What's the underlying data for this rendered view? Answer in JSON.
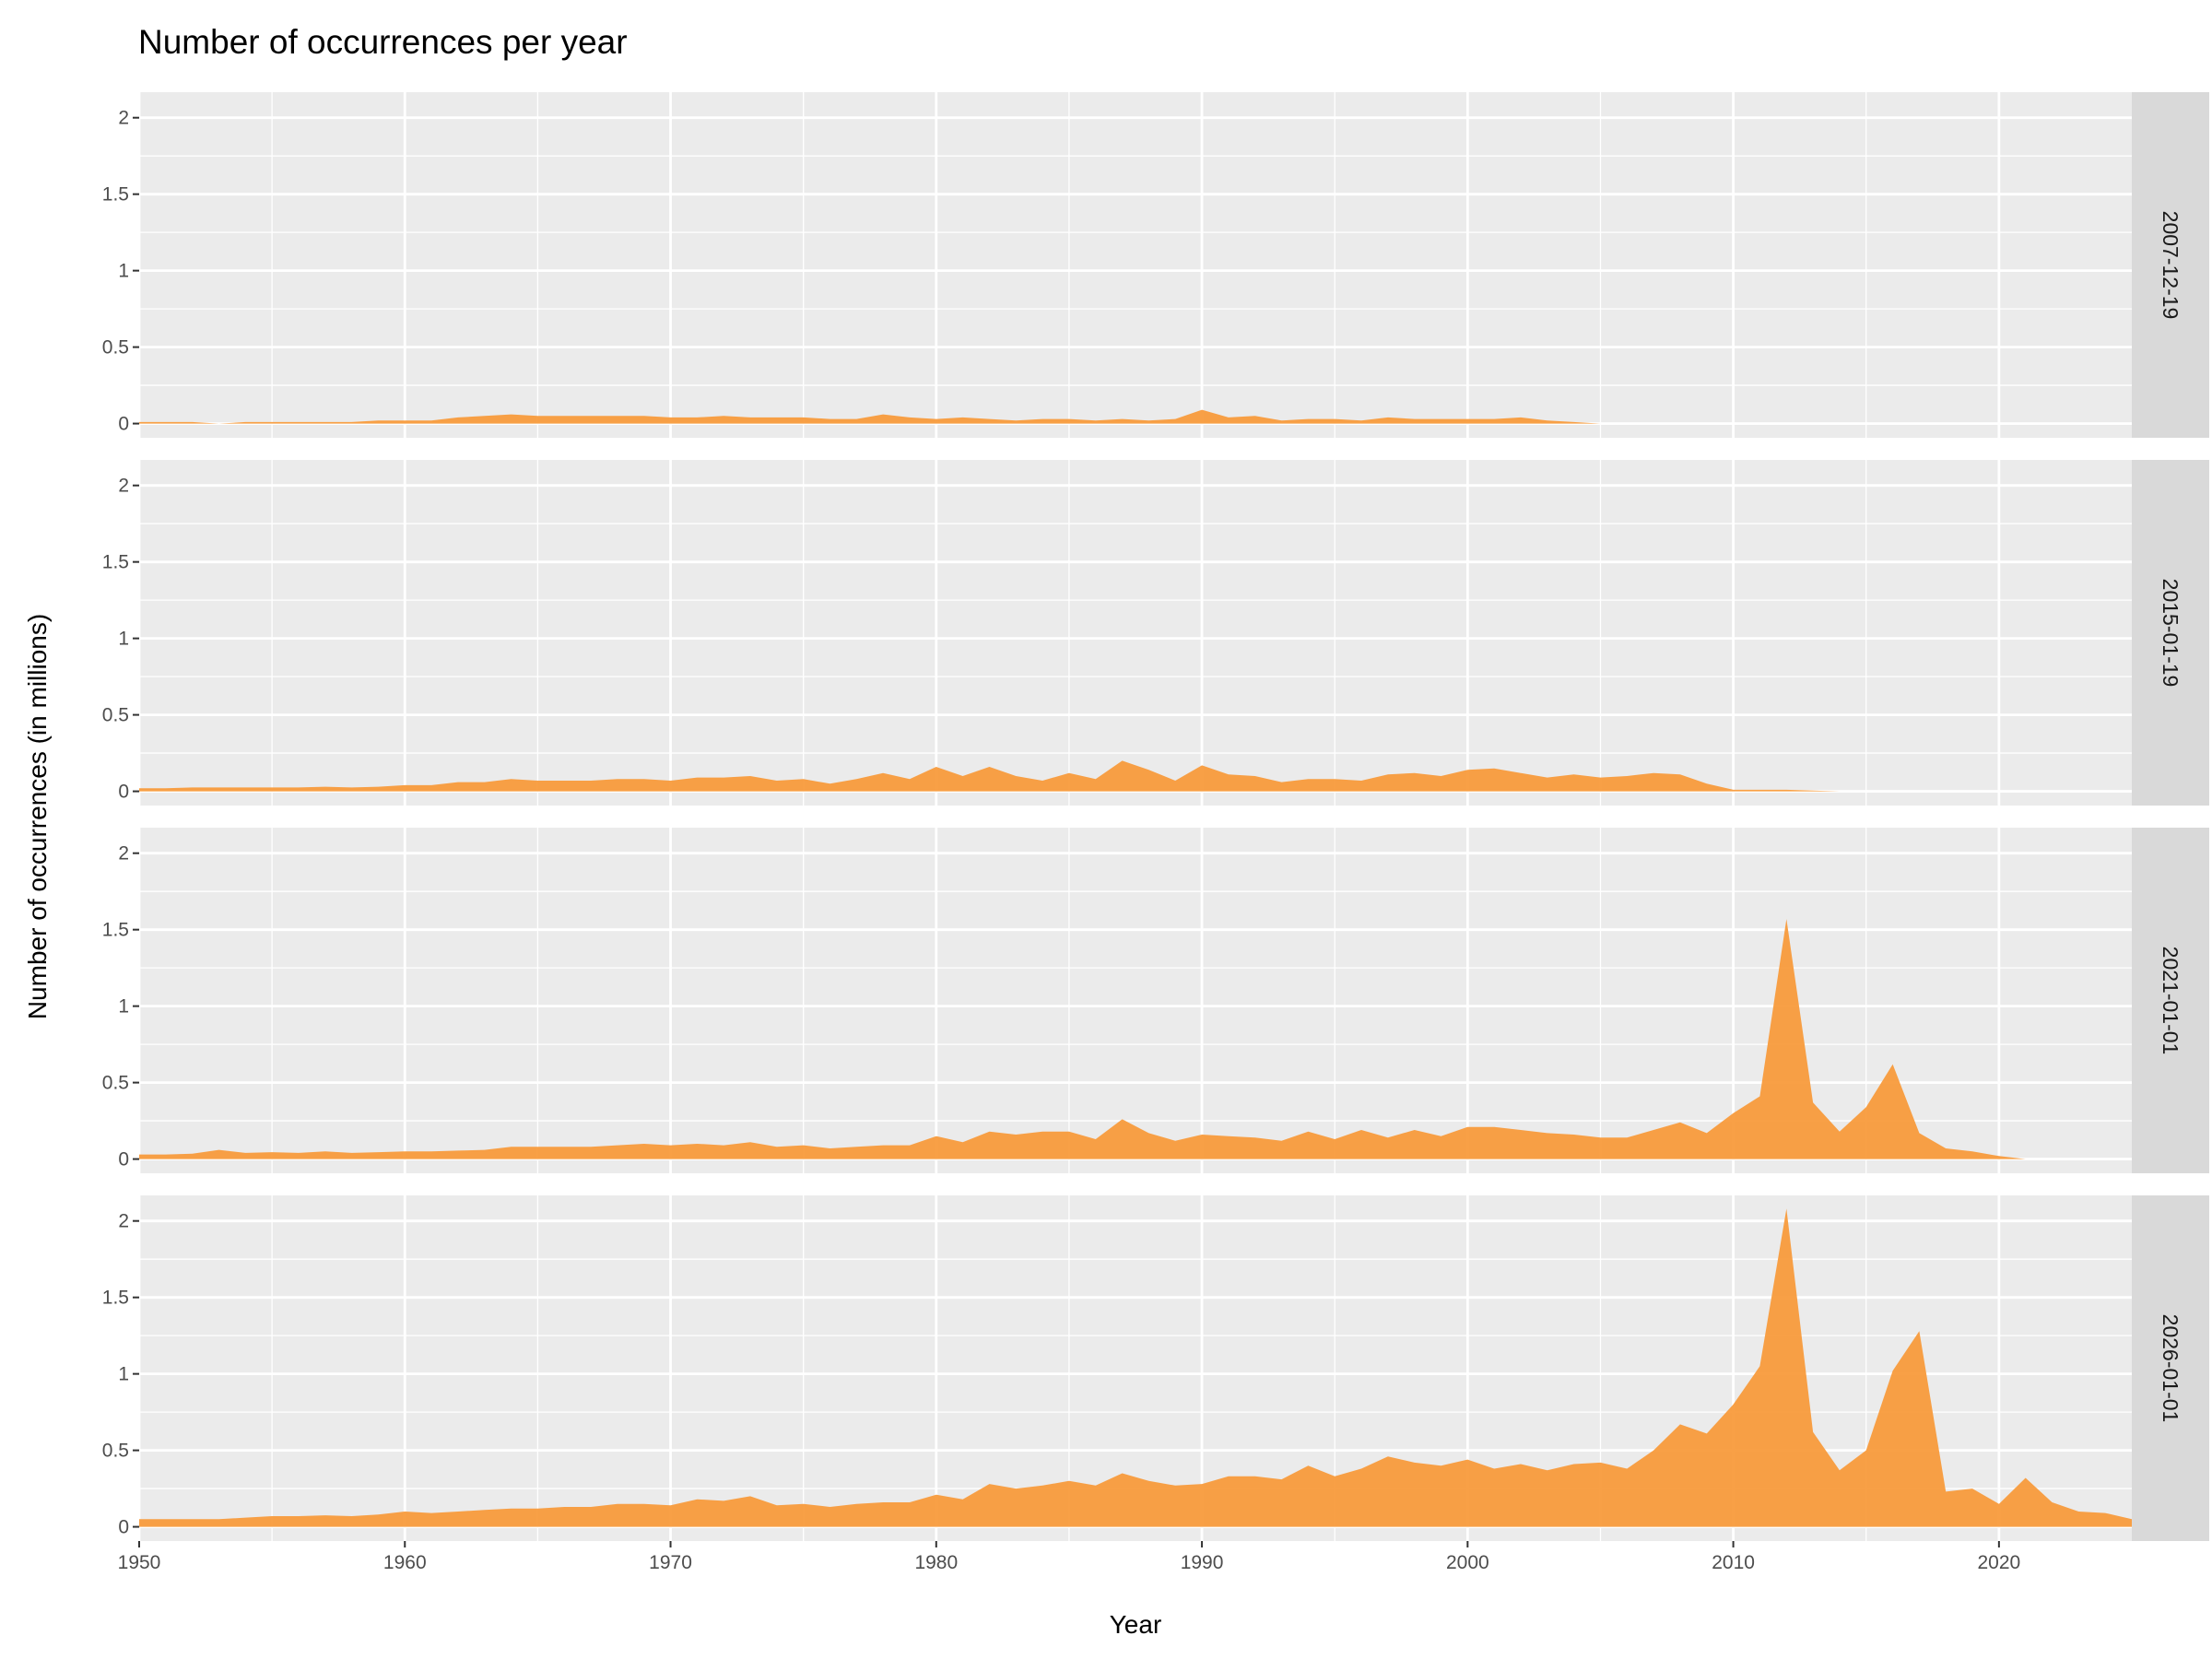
{
  "chart_data": {
    "type": "area",
    "title": "Number of occurrences per year",
    "xlabel": "Year",
    "ylabel": "Number of occurrences (in millions)",
    "xlim": [
      1950,
      2025
    ],
    "ylim": [
      -0.093,
      2.167
    ],
    "x_ticks": [
      1950,
      1960,
      1970,
      1980,
      1990,
      2000,
      2010,
      2020
    ],
    "y_ticks": [
      0,
      0.5,
      1,
      1.5,
      2
    ],
    "y_tick_labels": [
      "0",
      "0.5",
      "1",
      "1.5",
      "2"
    ],
    "grid": true,
    "fill_color": "#F89B3C",
    "start_year": 1950,
    "panels": [
      {
        "label": "2007-12-19",
        "values": [
          0.01,
          0.01,
          0.01,
          0.0,
          0.01,
          0.01,
          0.01,
          0.01,
          0.01,
          0.02,
          0.02,
          0.02,
          0.04,
          0.05,
          0.06,
          0.05,
          0.05,
          0.05,
          0.05,
          0.05,
          0.04,
          0.04,
          0.05,
          0.04,
          0.04,
          0.04,
          0.03,
          0.03,
          0.06,
          0.04,
          0.03,
          0.04,
          0.03,
          0.02,
          0.03,
          0.03,
          0.02,
          0.03,
          0.02,
          0.03,
          0.09,
          0.04,
          0.05,
          0.02,
          0.03,
          0.03,
          0.02,
          0.04,
          0.03,
          0.03,
          0.03,
          0.03,
          0.04,
          0.02,
          0.01,
          0.0
        ]
      },
      {
        "label": "2015-01-19",
        "values": [
          0.02,
          0.02,
          0.025,
          0.025,
          0.025,
          0.025,
          0.025,
          0.03,
          0.025,
          0.03,
          0.04,
          0.04,
          0.06,
          0.06,
          0.08,
          0.07,
          0.07,
          0.07,
          0.08,
          0.08,
          0.07,
          0.09,
          0.09,
          0.1,
          0.07,
          0.08,
          0.05,
          0.08,
          0.12,
          0.08,
          0.16,
          0.1,
          0.16,
          0.1,
          0.07,
          0.12,
          0.08,
          0.2,
          0.14,
          0.07,
          0.17,
          0.11,
          0.1,
          0.06,
          0.08,
          0.08,
          0.07,
          0.11,
          0.12,
          0.1,
          0.14,
          0.15,
          0.12,
          0.09,
          0.11,
          0.09,
          0.1,
          0.12,
          0.11,
          0.05,
          0.01,
          0.01,
          0.01,
          0.005,
          0.0
        ]
      },
      {
        "label": "2021-01-01",
        "values": [
          0.03,
          0.03,
          0.035,
          0.06,
          0.04,
          0.045,
          0.04,
          0.05,
          0.04,
          0.045,
          0.05,
          0.05,
          0.055,
          0.06,
          0.08,
          0.08,
          0.08,
          0.08,
          0.09,
          0.1,
          0.09,
          0.1,
          0.09,
          0.11,
          0.08,
          0.09,
          0.07,
          0.08,
          0.09,
          0.09,
          0.15,
          0.11,
          0.18,
          0.16,
          0.18,
          0.18,
          0.13,
          0.26,
          0.17,
          0.12,
          0.16,
          0.15,
          0.14,
          0.12,
          0.18,
          0.13,
          0.19,
          0.14,
          0.19,
          0.15,
          0.21,
          0.21,
          0.19,
          0.17,
          0.16,
          0.14,
          0.14,
          0.19,
          0.24,
          0.17,
          0.3,
          0.41,
          1.57,
          0.37,
          0.18,
          0.34,
          0.62,
          0.17,
          0.07,
          0.05,
          0.02,
          0.0
        ]
      },
      {
        "label": "2026-01-01",
        "values": [
          0.05,
          0.05,
          0.05,
          0.05,
          0.06,
          0.07,
          0.07,
          0.075,
          0.07,
          0.08,
          0.1,
          0.09,
          0.1,
          0.11,
          0.12,
          0.12,
          0.13,
          0.13,
          0.15,
          0.15,
          0.14,
          0.18,
          0.17,
          0.2,
          0.14,
          0.15,
          0.13,
          0.15,
          0.16,
          0.16,
          0.21,
          0.18,
          0.28,
          0.25,
          0.27,
          0.3,
          0.27,
          0.35,
          0.3,
          0.27,
          0.28,
          0.33,
          0.33,
          0.31,
          0.4,
          0.33,
          0.38,
          0.46,
          0.42,
          0.4,
          0.44,
          0.38,
          0.41,
          0.37,
          0.41,
          0.42,
          0.38,
          0.5,
          0.67,
          0.61,
          0.8,
          1.05,
          2.08,
          0.62,
          0.37,
          0.5,
          1.02,
          1.28,
          0.23,
          0.25,
          0.15,
          0.32,
          0.16,
          0.1,
          0.09,
          0.05
        ]
      }
    ]
  }
}
